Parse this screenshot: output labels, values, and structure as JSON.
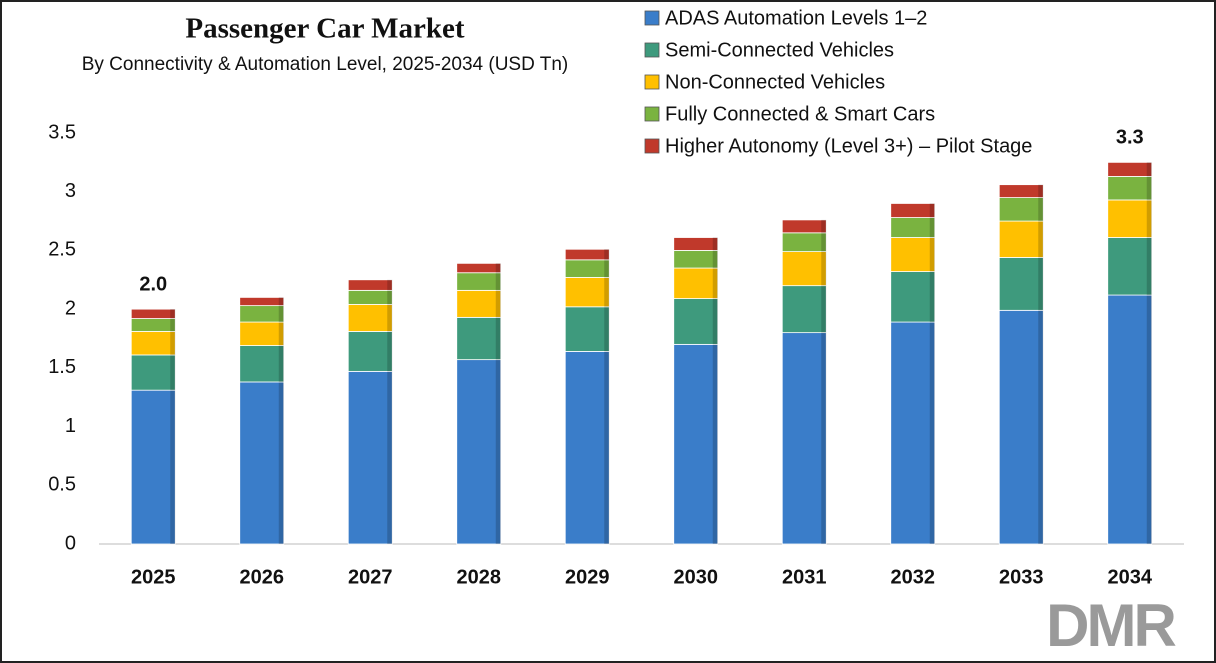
{
  "chart_data": {
    "type": "stacked_bar",
    "title": "Passenger Car Market",
    "subtitle": "By Connectivity & Automation Level, 2025-2034 (USD Tn)",
    "categories": [
      "2025",
      "2026",
      "2027",
      "2028",
      "2029",
      "2030",
      "2031",
      "2032",
      "2033",
      "2034"
    ],
    "series": [
      {
        "name": "ADAS Automation Levels 1–2",
        "color": "#3a7dc9",
        "values": [
          1.31,
          1.38,
          1.47,
          1.57,
          1.64,
          1.7,
          1.8,
          1.89,
          1.99,
          2.12
        ]
      },
      {
        "name": "Semi-Connected Vehicles",
        "color": "#3e9a7d",
        "values": [
          0.3,
          0.31,
          0.34,
          0.36,
          0.38,
          0.39,
          0.4,
          0.43,
          0.45,
          0.49
        ]
      },
      {
        "name": "Non-Connected Vehicles",
        "color": "#ffc000",
        "values": [
          0.2,
          0.2,
          0.23,
          0.23,
          0.25,
          0.26,
          0.29,
          0.29,
          0.31,
          0.32
        ]
      },
      {
        "name": "Fully Connected & Smart Cars",
        "color": "#7ab340",
        "values": [
          0.11,
          0.14,
          0.12,
          0.15,
          0.15,
          0.15,
          0.16,
          0.17,
          0.2,
          0.2
        ]
      },
      {
        "name": "Higher Autonomy (Level 3+) – Pilot Stage",
        "color": "#c0392b",
        "values": [
          0.08,
          0.07,
          0.09,
          0.08,
          0.09,
          0.11,
          0.11,
          0.12,
          0.11,
          0.12
        ]
      }
    ],
    "total_labels": [
      "2.0",
      null,
      null,
      null,
      null,
      null,
      null,
      null,
      null,
      "3.3"
    ],
    "ylim": [
      0,
      3.5
    ],
    "yticks": [
      0,
      0.5,
      1,
      1.5,
      2,
      2.5,
      3,
      3.5
    ],
    "grid": false,
    "legend": "top-right",
    "logo": "DMR"
  }
}
